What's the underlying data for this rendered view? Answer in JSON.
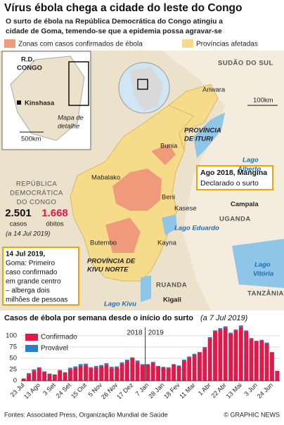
{
  "header": {
    "title": "Vírus ébola chega a cidade do leste do Congo",
    "subtitle_lines": [
      "O surto de ébola na República Democrática do Congo atingiu a",
      "cidade de Goma, temendo-se que a epidemia possa agravar-se"
    ]
  },
  "legend": {
    "confirmed_zones": "Zonas com casos confirmados de ébola",
    "affected_provinces": "Províncias afetadas"
  },
  "inset": {
    "country": [
      "R.D.",
      "CONGO"
    ],
    "capital": "Kinshasa",
    "detail": [
      "Mapa de",
      "detalhe"
    ],
    "scale": "500km"
  },
  "map": {
    "labels": {
      "south_sudan": "SUDÃO DO SUL",
      "ariwara": "Ariwara",
      "scale": "100km",
      "ituri": [
        "PROVÍNCIA",
        "DE ITURI"
      ],
      "bunia": "Bunia",
      "lake_albert": [
        "Lago",
        "Alberto"
      ],
      "drc": [
        "REPÚBLICA",
        "DEMOCRÁTICA",
        "DO CONGO"
      ],
      "mabalako": "Mabalako",
      "beni": "Beni",
      "kasese": "Kasese",
      "kampala": "Campala",
      "uganda": "UGANDA",
      "lake_edward": "Lago Eduardo",
      "butembo": "Butembo",
      "kayna": "Kayna",
      "north_kivu": [
        "PROVÍNCIA DE",
        "KIVU NORTE"
      ],
      "rwanda": "RUANDA",
      "kigali": "Kigali",
      "tanzania": "TANZÂNIA",
      "lake_victoria": [
        "Lago",
        "Vitória"
      ],
      "lake_kivu": "Lago Kivu"
    },
    "stats": {
      "cases": "2.501",
      "cases_label": "casos",
      "deaths": "1.668",
      "deaths_label": "óbitos",
      "date": "(a 14 Jul 2019)"
    },
    "callouts": {
      "mangina": [
        "Ago 2018, Mangina",
        "Declarado o surto"
      ],
      "goma": [
        "14 Jul 2019,",
        "Goma: Primeiro",
        "caso confirmado",
        "em grande centro",
        "– alberga dois",
        "milhões de pessoas"
      ]
    }
  },
  "chart_data": {
    "type": "bar",
    "stacked": true,
    "title": "Casos de ébola por semana desde o início do surto",
    "subtitle": "(a 7 Jul 2019)",
    "categories": [
      "23 Jul",
      null,
      null,
      "13 Ago",
      null,
      null,
      "3 Set",
      null,
      null,
      "24 Set",
      null,
      null,
      "15 Out",
      null,
      null,
      "5 Nov",
      null,
      null,
      "26 Nov",
      null,
      null,
      "17 Dez",
      null,
      null,
      "7 Jan",
      null,
      null,
      "28 Jan",
      null,
      null,
      "18 Fev",
      null,
      null,
      "11 Mar",
      null,
      null,
      "1 Abr",
      null,
      null,
      "22 Abr",
      null,
      null,
      "13 Mai",
      null,
      null,
      "3 Jun",
      null,
      null,
      "24 Jun",
      null
    ],
    "series": [
      {
        "name": "Confirmado",
        "color": "#e0194b",
        "values": [
          5,
          15,
          22,
          28,
          20,
          15,
          14,
          22,
          18,
          26,
          30,
          33,
          35,
          28,
          30,
          33,
          35,
          28,
          30,
          38,
          45,
          50,
          42,
          35,
          36,
          40,
          32,
          30,
          28,
          36,
          32,
          45,
          52,
          58,
          63,
          72,
          95,
          110,
          114,
          118,
          105,
          112,
          120,
          110,
          93,
          88,
          90,
          83,
          63,
          22
        ]
      },
      {
        "name": "Provável",
        "color": "#2a7fc4",
        "values": [
          0,
          2,
          3,
          2,
          1,
          1,
          0,
          2,
          1,
          3,
          2,
          4,
          3,
          2,
          3,
          2,
          4,
          3,
          2,
          3,
          2,
          2,
          3,
          2,
          1,
          2,
          1,
          1,
          2,
          1,
          2,
          2,
          2,
          2,
          1,
          3,
          2,
          2,
          3,
          3,
          2,
          2,
          3,
          2,
          2,
          1,
          1,
          2,
          1,
          0
        ]
      }
    ],
    "ylim": [
      0,
      125
    ],
    "yticks": [
      0,
      25,
      50,
      75,
      100
    ],
    "grid": true,
    "year_divider": {
      "index": 24,
      "left": "2018",
      "right": "2019"
    }
  },
  "footer": {
    "sources": "Fontes: Associated Press, Organização Mundial de Saúde",
    "credit": "© GRAPHIC NEWS"
  }
}
